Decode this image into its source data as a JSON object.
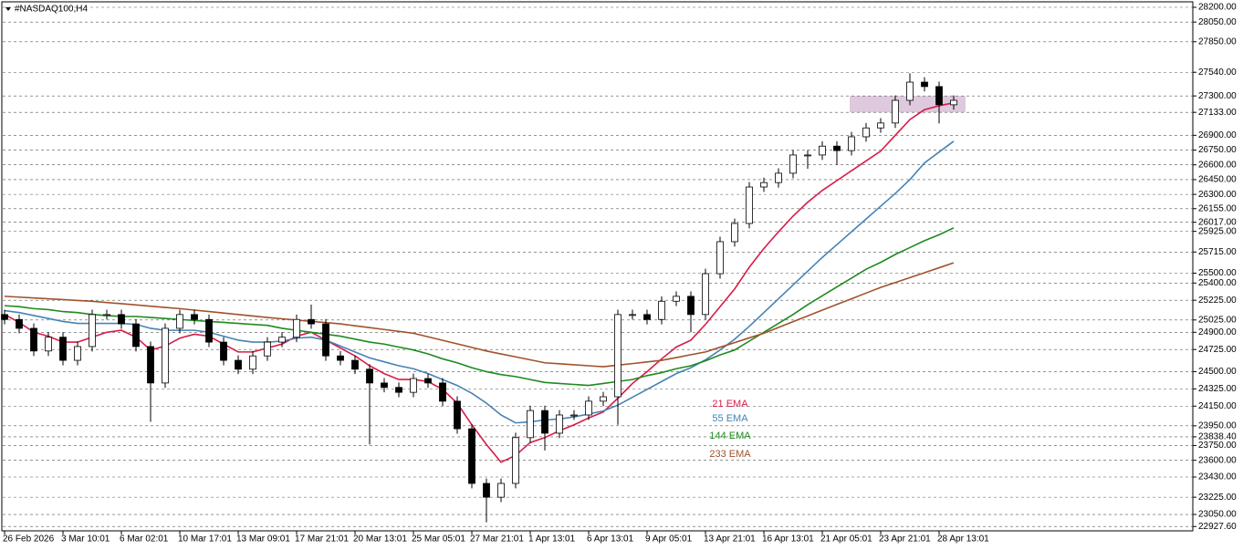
{
  "chart_data": {
    "type": "candlestick",
    "title": "#NASDAQ100,H4",
    "categories": [
      "26 Feb 2026",
      null,
      null,
      null,
      "3 Mar 10:01",
      null,
      null,
      null,
      "6 Mar 02:01",
      null,
      null,
      null,
      "10 Mar 17:01",
      null,
      null,
      null,
      "13 Mar 09:01",
      null,
      null,
      null,
      "17 Mar 21:01",
      null,
      null,
      null,
      "20 Mar 13:01",
      null,
      null,
      null,
      "25 Mar 05:01",
      null,
      null,
      null,
      "27 Mar 21:01",
      null,
      null,
      null,
      "1 Apr 13:01",
      null,
      null,
      null,
      "6 Apr 13:01",
      null,
      null,
      null,
      "9 Apr 05:01",
      null,
      null,
      null,
      "13 Apr 21:01",
      null,
      null,
      null,
      "16 Apr 13:01",
      null,
      null,
      null,
      "21 Apr 05:01",
      null,
      null,
      null,
      "23 Apr 21:01",
      null,
      null,
      null,
      "28 Apr 13:01",
      null
    ],
    "open": [
      25080,
      25030,
      24940,
      24710,
      24850,
      24615,
      24755,
      25080,
      25080,
      24985,
      24755,
      24385,
      24940,
      25080,
      25030,
      24800,
      24615,
      24525,
      24660,
      24800,
      24850,
      25030,
      24985,
      24660,
      24615,
      24525,
      24385,
      24340,
      24290,
      24430,
      24385,
      24200,
      23920,
      23365,
      23225,
      23365,
      23830,
      24105,
      23875,
      24060,
      24060,
      24200,
      24245,
      25080,
      25080,
      25030,
      25215,
      25265,
      25080,
      25495,
      25820,
      26005,
      26375,
      26420,
      26515,
      26700,
      26700,
      26790,
      26745,
      26885,
      26975,
      27025,
      27255,
      27440,
      27395,
      27210
    ],
    "high": [
      25130,
      25080,
      24990,
      24900,
      24900,
      24805,
      25130,
      25130,
      25130,
      25035,
      24805,
      24990,
      25130,
      25130,
      25080,
      24850,
      24665,
      24710,
      24850,
      24900,
      25080,
      25180,
      25035,
      24710,
      24665,
      24575,
      24435,
      24390,
      24480,
      24480,
      24435,
      24250,
      23970,
      23415,
      23415,
      23880,
      24155,
      24155,
      24110,
      24110,
      24250,
      24295,
      25130,
      25130,
      25130,
      25265,
      25315,
      25315,
      25545,
      25870,
      26055,
      26425,
      26470,
      26565,
      26750,
      26750,
      26840,
      26840,
      26935,
      27025,
      27075,
      27305,
      27530,
      27490,
      27445,
      27305
    ],
    "low": [
      24980,
      24890,
      24660,
      24660,
      24565,
      24565,
      24705,
      25030,
      24935,
      24705,
      23990,
      24335,
      24890,
      24980,
      24750,
      24565,
      24475,
      24475,
      24610,
      24750,
      24800,
      24935,
      24610,
      24565,
      24475,
      23760,
      24290,
      24240,
      24240,
      24335,
      24150,
      23870,
      23315,
      22970,
      23175,
      23315,
      23780,
      23700,
      23825,
      24010,
      24010,
      24150,
      23960,
      25030,
      24980,
      24980,
      25165,
      24900,
      25030,
      25445,
      25770,
      25955,
      26325,
      26370,
      26465,
      26560,
      26650,
      26600,
      26695,
      26835,
      26925,
      26975,
      27205,
      27345,
      27020,
      27160
    ],
    "close": [
      25030,
      24940,
      24710,
      24850,
      24615,
      24755,
      25080,
      25080,
      24985,
      24755,
      24385,
      24940,
      25080,
      25030,
      24800,
      24615,
      24525,
      24660,
      24800,
      24850,
      25030,
      24985,
      24660,
      24615,
      24525,
      24385,
      24340,
      24290,
      24430,
      24385,
      24200,
      23920,
      23365,
      23225,
      23365,
      23830,
      24105,
      23875,
      24060,
      24060,
      24200,
      24245,
      25080,
      25080,
      25030,
      25215,
      25265,
      25080,
      25495,
      25820,
      26005,
      26375,
      26420,
      26515,
      26700,
      26700,
      26790,
      26745,
      26885,
      26975,
      27025,
      27255,
      27440,
      27395,
      27210,
      27255
    ],
    "series": [
      {
        "name": "21 EMA",
        "color": "#d81b47",
        "values": [
          25080,
          25000,
          24900,
          24860,
          24800,
          24800,
          24850,
          24900,
          24920,
          24850,
          24720,
          24760,
          24840,
          24880,
          24860,
          24780,
          24700,
          24700,
          24740,
          24780,
          24860,
          24900,
          24820,
          24740,
          24660,
          24560,
          24480,
          24420,
          24420,
          24400,
          24320,
          24180,
          23960,
          23760,
          23580,
          23650,
          23780,
          23830,
          23900,
          23960,
          24030,
          24090,
          24230,
          24380,
          24500,
          24630,
          24750,
          24820,
          24980,
          25160,
          25340,
          25560,
          25750,
          25920,
          26080,
          26220,
          26340,
          26440,
          26540,
          26640,
          26740,
          26900,
          27060,
          27160,
          27200,
          27230
        ]
      },
      {
        "name": "55 EMA",
        "color": "#4682b4",
        "values": [
          25120,
          25100,
          25070,
          25040,
          25010,
          24990,
          24990,
          24990,
          24990,
          24980,
          24940,
          24920,
          24920,
          24920,
          24900,
          24860,
          24820,
          24800,
          24800,
          24810,
          24840,
          24850,
          24820,
          24760,
          24700,
          24640,
          24600,
          24560,
          24530,
          24480,
          24420,
          24360,
          24280,
          24180,
          24060,
          23980,
          23990,
          24010,
          24020,
          24040,
          24070,
          24100,
          24160,
          24240,
          24320,
          24400,
          24480,
          24540,
          24620,
          24720,
          24830,
          24960,
          25100,
          25240,
          25380,
          25520,
          25660,
          25790,
          25920,
          26050,
          26180,
          26310,
          26450,
          26620,
          26730,
          26840
        ]
      },
      {
        "name": "144 EMA",
        "color": "#1f8a1f",
        "values": [
          25170,
          25160,
          25140,
          25130,
          25110,
          25100,
          25080,
          25070,
          25060,
          25060,
          25050,
          25040,
          25030,
          25020,
          25010,
          25000,
          24990,
          24980,
          24970,
          24940,
          24920,
          24900,
          24880,
          24860,
          24830,
          24800,
          24780,
          24750,
          24720,
          24680,
          24630,
          24590,
          24540,
          24500,
          24470,
          24450,
          24420,
          24390,
          24380,
          24370,
          24360,
          24380,
          24400,
          24420,
          24460,
          24490,
          24530,
          24560,
          24610,
          24670,
          24720,
          24810,
          24900,
          24990,
          25080,
          25180,
          25270,
          25360,
          25450,
          25540,
          25610,
          25690,
          25760,
          25830,
          25890,
          25960
        ]
      },
      {
        "name": "233 EMA",
        "color": "#a0522d",
        "values": [
          25265,
          25257,
          25248,
          25240,
          25232,
          25223,
          25215,
          25202,
          25190,
          25178,
          25165,
          25152,
          25140,
          25125,
          25110,
          25095,
          25080,
          25065,
          25050,
          25037,
          25024,
          25011,
          24998,
          24985,
          24966,
          24947,
          24928,
          24909,
          24890,
          24854,
          24818,
          24782,
          24746,
          24710,
          24680,
          24650,
          24620,
          24590,
          24580,
          24570,
          24560,
          24550,
          24566,
          24582,
          24599,
          24615,
          24643,
          24672,
          24700,
          24748,
          24795,
          24843,
          24890,
          24949,
          25008,
          25066,
          25125,
          25183,
          25240,
          25298,
          25355,
          25405,
          25455,
          25505,
          25555,
          25605
        ]
      }
    ],
    "zone": {
      "range": [
        27133,
        27300
      ],
      "color": "#d8bfd8"
    },
    "ylim": [
      22902,
      28274
    ],
    "yticks": [
      {
        "value": 28200,
        "label": "28200.00"
      },
      {
        "value": 28050,
        "label": "28050.00"
      },
      {
        "value": 27850,
        "label": "27850.00"
      },
      {
        "value": 27540,
        "label": "27540.00"
      },
      {
        "value": 27300,
        "label": "27300.00"
      },
      {
        "value": 27133,
        "label": "27133.00"
      },
      {
        "value": 26900,
        "label": "26900.00"
      },
      {
        "value": 26750,
        "label": "26750.00"
      },
      {
        "value": 26600,
        "label": "26600.00"
      },
      {
        "value": 26450,
        "label": "26450.00"
      },
      {
        "value": 26300,
        "label": "26300.00"
      },
      {
        "value": 26155,
        "label": "26155.00"
      },
      {
        "value": 26017,
        "label": "26017.00"
      },
      {
        "value": 25925,
        "label": "25925.00"
      },
      {
        "value": 25715,
        "label": "25715.00"
      },
      {
        "value": 25500,
        "label": "25500.00"
      },
      {
        "value": 25400,
        "label": "25400.00"
      },
      {
        "value": 25225,
        "label": "25225.00"
      },
      {
        "value": 25025,
        "label": "25025.00"
      },
      {
        "value": 24900,
        "label": "24900.00"
      },
      {
        "value": 24725,
        "label": "24725.00"
      },
      {
        "value": 24500,
        "label": "24500.00"
      },
      {
        "value": 24325,
        "label": "24325.00"
      },
      {
        "value": 24150,
        "label": "24150.00"
      },
      {
        "value": 23950,
        "label": "23950.00"
      },
      {
        "value": 23838.4,
        "label": "23838.40"
      },
      {
        "value": 23750,
        "label": "23750.00"
      },
      {
        "value": 23600,
        "label": "23600.00"
      },
      {
        "value": 23430,
        "label": "23430.00"
      },
      {
        "value": 23225,
        "label": "23225.00"
      },
      {
        "value": 23050,
        "label": "23050.00"
      },
      {
        "value": 22927.6,
        "label": "22927.60"
      }
    ],
    "grid": true
  }
}
